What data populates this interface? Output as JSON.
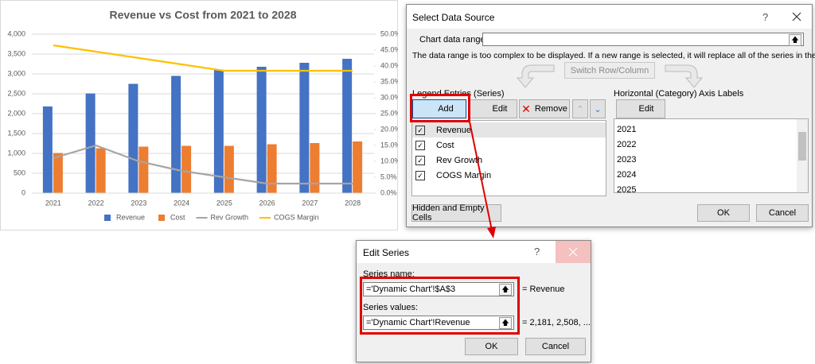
{
  "chart_data": {
    "type": "bar",
    "title": "Revenue vs Cost from 2021 to 2028",
    "categories": [
      "2021",
      "2022",
      "2023",
      "2024",
      "2025",
      "2026",
      "2027",
      "2028"
    ],
    "series": [
      {
        "name": "Revenue",
        "color": "#4472c4",
        "values": [
          2181,
          2508,
          2750,
          2950,
          3100,
          3180,
          3280,
          3380
        ]
      },
      {
        "name": "Cost",
        "color": "#ed7d31",
        "values": [
          1010,
          1130,
          1170,
          1190,
          1190,
          1230,
          1260,
          1300
        ]
      },
      {
        "name": "Rev Growth",
        "type": "line",
        "axis": "y2",
        "color": "#a5a5a5",
        "values": [
          11,
          15,
          10,
          7,
          5,
          3,
          3,
          3
        ]
      },
      {
        "name": "COGS Margin",
        "type": "line",
        "axis": "y2",
        "color": "#ffc000",
        "values": [
          46.5,
          44.5,
          42.5,
          40.5,
          38.5,
          38.5,
          38.5,
          38.5
        ]
      }
    ],
    "ylim": [
      0,
      4000
    ],
    "yticks": [
      {
        "value": 0,
        "label": "0"
      },
      {
        "value": 500,
        "label": "500"
      },
      {
        "value": 1000,
        "label": "1,000"
      },
      {
        "value": 1500,
        "label": "1,500"
      },
      {
        "value": 2000,
        "label": "2,000"
      },
      {
        "value": 2500,
        "label": "2,500"
      },
      {
        "value": 3000,
        "label": "3,000"
      },
      {
        "value": 3500,
        "label": "3,500"
      },
      {
        "value": 4000,
        "label": "4,000"
      }
    ],
    "y2lim": [
      0,
      50
    ],
    "y2ticks": [
      {
        "value": 0,
        "label": "0.0%"
      },
      {
        "value": 5,
        "label": "5.0%"
      },
      {
        "value": 10,
        "label": "10.0%"
      },
      {
        "value": 15,
        "label": "15.0%"
      },
      {
        "value": 20,
        "label": "20.0%"
      },
      {
        "value": 25,
        "label": "25.0%"
      },
      {
        "value": 30,
        "label": "30.0%"
      },
      {
        "value": 35,
        "label": "35.0%"
      },
      {
        "value": 40,
        "label": "40.0%"
      },
      {
        "value": 45,
        "label": "45.0%"
      },
      {
        "value": 50,
        "label": "50.0%"
      }
    ],
    "grid": true,
    "legend": "bottom"
  },
  "select_data_source": {
    "title": "Select Data Source",
    "help": "?",
    "range_label": "Chart data range:",
    "message": "The data range is too complex to be displayed. If a new range is selected, it will replace all of the series in the Series panel.",
    "switch_button": "Switch Row/Column",
    "legend_heading": "Legend Entries (Series)",
    "add_button": "Add",
    "edit_button": "Edit",
    "remove_button": "Remove",
    "axis_heading": "Horizontal (Category) Axis Labels",
    "axis_edit_button": "Edit",
    "hidden_button": "Hidden and Empty Cells",
    "ok_button": "OK",
    "cancel_button": "Cancel"
  },
  "edit_series": {
    "title": "Edit Series",
    "help": "?",
    "name_label": "Series name:",
    "name_ref": "='Dynamic Chart'!$A$3",
    "name_preview": "= Revenue",
    "values_label": "Series values:",
    "values_ref": "='Dynamic Chart'!Revenue",
    "values_preview": "= 2,181, 2,508, ...",
    "ok_button": "OK",
    "cancel_button": "Cancel"
  }
}
